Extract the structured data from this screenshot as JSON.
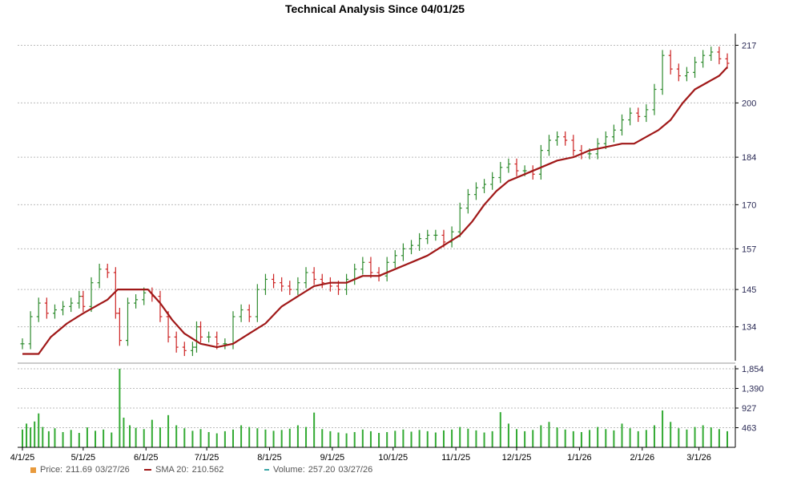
{
  "chart_data": {
    "type": "line",
    "title": "Technical Analysis Since 04/01/25",
    "price_axis": {
      "ticks": [
        134,
        145,
        157,
        170,
        184,
        200,
        217
      ],
      "range": [
        124,
        219
      ]
    },
    "volume_axis": {
      "ticks": [
        463,
        927,
        1390,
        1854
      ],
      "range": [
        0,
        1854
      ]
    },
    "x_ticks": [
      {
        "label": "4/1/25",
        "day": 0
      },
      {
        "label": "5/1/25",
        "day": 30
      },
      {
        "label": "6/1/25",
        "day": 61
      },
      {
        "label": "7/1/25",
        "day": 91
      },
      {
        "label": "8/1/25",
        "day": 122
      },
      {
        "label": "9/1/25",
        "day": 153
      },
      {
        "label": "10/1/25",
        "day": 183
      },
      {
        "label": "11/1/25",
        "day": 214
      },
      {
        "label": "12/1/25",
        "day": 244
      },
      {
        "label": "1/1/26",
        "day": 275
      },
      {
        "label": "2/1/26",
        "day": 306
      },
      {
        "label": "3/1/26",
        "day": 334
      }
    ],
    "price_series": [
      {
        "day": 0,
        "c": 129
      },
      {
        "day": 4,
        "c": 137
      },
      {
        "day": 8,
        "c": 141
      },
      {
        "day": 12,
        "c": 138
      },
      {
        "day": 16,
        "c": 139
      },
      {
        "day": 20,
        "c": 140
      },
      {
        "day": 24,
        "c": 141
      },
      {
        "day": 28,
        "c": 143
      },
      {
        "day": 30,
        "c": 140
      },
      {
        "day": 34,
        "c": 147
      },
      {
        "day": 38,
        "c": 151
      },
      {
        "day": 42,
        "c": 150
      },
      {
        "day": 46,
        "c": 138
      },
      {
        "day": 48,
        "c": 130
      },
      {
        "day": 52,
        "c": 141
      },
      {
        "day": 56,
        "c": 142
      },
      {
        "day": 60,
        "c": 144
      },
      {
        "day": 64,
        "c": 143
      },
      {
        "day": 68,
        "c": 137
      },
      {
        "day": 72,
        "c": 131
      },
      {
        "day": 76,
        "c": 128
      },
      {
        "day": 80,
        "c": 127
      },
      {
        "day": 84,
        "c": 128
      },
      {
        "day": 86,
        "c": 134
      },
      {
        "day": 88,
        "c": 131
      },
      {
        "day": 92,
        "c": 131
      },
      {
        "day": 96,
        "c": 129
      },
      {
        "day": 100,
        "c": 129
      },
      {
        "day": 104,
        "c": 137
      },
      {
        "day": 108,
        "c": 139
      },
      {
        "day": 112,
        "c": 137
      },
      {
        "day": 116,
        "c": 145
      },
      {
        "day": 120,
        "c": 148
      },
      {
        "day": 124,
        "c": 147
      },
      {
        "day": 128,
        "c": 146
      },
      {
        "day": 132,
        "c": 145
      },
      {
        "day": 136,
        "c": 147
      },
      {
        "day": 140,
        "c": 150
      },
      {
        "day": 144,
        "c": 148
      },
      {
        "day": 148,
        "c": 147
      },
      {
        "day": 152,
        "c": 146
      },
      {
        "day": 156,
        "c": 145
      },
      {
        "day": 160,
        "c": 148
      },
      {
        "day": 164,
        "c": 151
      },
      {
        "day": 168,
        "c": 153
      },
      {
        "day": 172,
        "c": 150
      },
      {
        "day": 176,
        "c": 149
      },
      {
        "day": 180,
        "c": 153
      },
      {
        "day": 184,
        "c": 155
      },
      {
        "day": 188,
        "c": 157
      },
      {
        "day": 192,
        "c": 158
      },
      {
        "day": 196,
        "c": 160
      },
      {
        "day": 200,
        "c": 161
      },
      {
        "day": 204,
        "c": 161
      },
      {
        "day": 208,
        "c": 159
      },
      {
        "day": 212,
        "c": 162
      },
      {
        "day": 216,
        "c": 169
      },
      {
        "day": 220,
        "c": 173
      },
      {
        "day": 224,
        "c": 175
      },
      {
        "day": 228,
        "c": 176
      },
      {
        "day": 232,
        "c": 178
      },
      {
        "day": 236,
        "c": 181
      },
      {
        "day": 240,
        "c": 182
      },
      {
        "day": 244,
        "c": 180
      },
      {
        "day": 248,
        "c": 180
      },
      {
        "day": 252,
        "c": 179
      },
      {
        "day": 256,
        "c": 186
      },
      {
        "day": 260,
        "c": 189
      },
      {
        "day": 264,
        "c": 190
      },
      {
        "day": 268,
        "c": 189
      },
      {
        "day": 272,
        "c": 186
      },
      {
        "day": 276,
        "c": 185
      },
      {
        "day": 280,
        "c": 185
      },
      {
        "day": 284,
        "c": 188
      },
      {
        "day": 288,
        "c": 190
      },
      {
        "day": 292,
        "c": 192
      },
      {
        "day": 296,
        "c": 195
      },
      {
        "day": 300,
        "c": 197
      },
      {
        "day": 304,
        "c": 196
      },
      {
        "day": 308,
        "c": 198
      },
      {
        "day": 312,
        "c": 204
      },
      {
        "day": 316,
        "c": 214
      },
      {
        "day": 320,
        "c": 210
      },
      {
        "day": 324,
        "c": 208
      },
      {
        "day": 328,
        "c": 209
      },
      {
        "day": 332,
        "c": 212
      },
      {
        "day": 336,
        "c": 214
      },
      {
        "day": 340,
        "c": 215
      },
      {
        "day": 344,
        "c": 213
      },
      {
        "day": 348,
        "c": 211.69
      }
    ],
    "sma20_series": [
      {
        "day": 0,
        "v": 126
      },
      {
        "day": 8,
        "v": 126
      },
      {
        "day": 14,
        "v": 131
      },
      {
        "day": 22,
        "v": 135
      },
      {
        "day": 30,
        "v": 138
      },
      {
        "day": 36,
        "v": 140
      },
      {
        "day": 42,
        "v": 142
      },
      {
        "day": 47,
        "v": 145
      },
      {
        "day": 56,
        "v": 145
      },
      {
        "day": 62,
        "v": 145
      },
      {
        "day": 68,
        "v": 141
      },
      {
        "day": 74,
        "v": 136
      },
      {
        "day": 80,
        "v": 132
      },
      {
        "day": 88,
        "v": 129
      },
      {
        "day": 96,
        "v": 128
      },
      {
        "day": 104,
        "v": 129
      },
      {
        "day": 112,
        "v": 132
      },
      {
        "day": 120,
        "v": 135
      },
      {
        "day": 128,
        "v": 140
      },
      {
        "day": 136,
        "v": 143
      },
      {
        "day": 144,
        "v": 146
      },
      {
        "day": 152,
        "v": 147
      },
      {
        "day": 160,
        "v": 147
      },
      {
        "day": 168,
        "v": 149
      },
      {
        "day": 176,
        "v": 149
      },
      {
        "day": 184,
        "v": 151
      },
      {
        "day": 192,
        "v": 153
      },
      {
        "day": 200,
        "v": 155
      },
      {
        "day": 208,
        "v": 158
      },
      {
        "day": 216,
        "v": 161
      },
      {
        "day": 222,
        "v": 165
      },
      {
        "day": 228,
        "v": 170
      },
      {
        "day": 234,
        "v": 174
      },
      {
        "day": 240,
        "v": 177
      },
      {
        "day": 248,
        "v": 179
      },
      {
        "day": 256,
        "v": 181
      },
      {
        "day": 264,
        "v": 183
      },
      {
        "day": 272,
        "v": 184
      },
      {
        "day": 280,
        "v": 186
      },
      {
        "day": 288,
        "v": 187
      },
      {
        "day": 296,
        "v": 188
      },
      {
        "day": 302,
        "v": 188
      },
      {
        "day": 308,
        "v": 190
      },
      {
        "day": 314,
        "v": 192
      },
      {
        "day": 320,
        "v": 195
      },
      {
        "day": 326,
        "v": 200
      },
      {
        "day": 332,
        "v": 204
      },
      {
        "day": 338,
        "v": 206
      },
      {
        "day": 344,
        "v": 208
      },
      {
        "day": 348,
        "v": 210.562
      }
    ],
    "volume_series": [
      {
        "day": 0,
        "v": 420
      },
      {
        "day": 2,
        "v": 560
      },
      {
        "day": 4,
        "v": 470
      },
      {
        "day": 6,
        "v": 610
      },
      {
        "day": 8,
        "v": 800
      },
      {
        "day": 10,
        "v": 480
      },
      {
        "day": 13,
        "v": 380
      },
      {
        "day": 16,
        "v": 450
      },
      {
        "day": 20,
        "v": 360
      },
      {
        "day": 24,
        "v": 410
      },
      {
        "day": 28,
        "v": 340
      },
      {
        "day": 32,
        "v": 470
      },
      {
        "day": 36,
        "v": 390
      },
      {
        "day": 40,
        "v": 420
      },
      {
        "day": 44,
        "v": 350
      },
      {
        "day": 48,
        "v": 1854
      },
      {
        "day": 50,
        "v": 700
      },
      {
        "day": 53,
        "v": 520
      },
      {
        "day": 56,
        "v": 460
      },
      {
        "day": 60,
        "v": 430
      },
      {
        "day": 64,
        "v": 650
      },
      {
        "day": 68,
        "v": 470
      },
      {
        "day": 72,
        "v": 760
      },
      {
        "day": 76,
        "v": 520
      },
      {
        "day": 80,
        "v": 450
      },
      {
        "day": 84,
        "v": 390
      },
      {
        "day": 88,
        "v": 430
      },
      {
        "day": 92,
        "v": 360
      },
      {
        "day": 96,
        "v": 330
      },
      {
        "day": 100,
        "v": 380
      },
      {
        "day": 104,
        "v": 420
      },
      {
        "day": 108,
        "v": 520
      },
      {
        "day": 112,
        "v": 480
      },
      {
        "day": 116,
        "v": 450
      },
      {
        "day": 120,
        "v": 420
      },
      {
        "day": 124,
        "v": 390
      },
      {
        "day": 128,
        "v": 410
      },
      {
        "day": 132,
        "v": 440
      },
      {
        "day": 136,
        "v": 520
      },
      {
        "day": 140,
        "v": 480
      },
      {
        "day": 144,
        "v": 820
      },
      {
        "day": 148,
        "v": 430
      },
      {
        "day": 152,
        "v": 380
      },
      {
        "day": 156,
        "v": 350
      },
      {
        "day": 160,
        "v": 330
      },
      {
        "day": 164,
        "v": 360
      },
      {
        "day": 168,
        "v": 420
      },
      {
        "day": 172,
        "v": 380
      },
      {
        "day": 176,
        "v": 340
      },
      {
        "day": 180,
        "v": 360
      },
      {
        "day": 184,
        "v": 390
      },
      {
        "day": 188,
        "v": 420
      },
      {
        "day": 192,
        "v": 370
      },
      {
        "day": 196,
        "v": 410
      },
      {
        "day": 200,
        "v": 380
      },
      {
        "day": 204,
        "v": 350
      },
      {
        "day": 208,
        "v": 400
      },
      {
        "day": 212,
        "v": 420
      },
      {
        "day": 216,
        "v": 480
      },
      {
        "day": 220,
        "v": 440
      },
      {
        "day": 224,
        "v": 400
      },
      {
        "day": 228,
        "v": 350
      },
      {
        "day": 232,
        "v": 380
      },
      {
        "day": 236,
        "v": 830
      },
      {
        "day": 240,
        "v": 560
      },
      {
        "day": 244,
        "v": 430
      },
      {
        "day": 248,
        "v": 380
      },
      {
        "day": 252,
        "v": 410
      },
      {
        "day": 256,
        "v": 520
      },
      {
        "day": 260,
        "v": 600
      },
      {
        "day": 264,
        "v": 470
      },
      {
        "day": 268,
        "v": 420
      },
      {
        "day": 272,
        "v": 380
      },
      {
        "day": 276,
        "v": 360
      },
      {
        "day": 280,
        "v": 410
      },
      {
        "day": 284,
        "v": 480
      },
      {
        "day": 288,
        "v": 430
      },
      {
        "day": 292,
        "v": 400
      },
      {
        "day": 296,
        "v": 560
      },
      {
        "day": 300,
        "v": 450
      },
      {
        "day": 304,
        "v": 380
      },
      {
        "day": 308,
        "v": 410
      },
      {
        "day": 312,
        "v": 520
      },
      {
        "day": 316,
        "v": 870
      },
      {
        "day": 320,
        "v": 600
      },
      {
        "day": 324,
        "v": 450
      },
      {
        "day": 328,
        "v": 420
      },
      {
        "day": 332,
        "v": 480
      },
      {
        "day": 336,
        "v": 520
      },
      {
        "day": 340,
        "v": 470
      },
      {
        "day": 344,
        "v": 430
      },
      {
        "day": 348,
        "v": 380
      }
    ],
    "colors": {
      "up": "#2e8b2e",
      "down": "#cc2222",
      "sma": "#a01818",
      "volume": "#33aa33",
      "grid": "#bbbbbb",
      "price_legend": "#e89a3c",
      "volume_legend": "#3aa6a6"
    },
    "grid": true,
    "legend": {
      "placement": "bottom-left",
      "price": {
        "label": "Price:",
        "value": "211.69",
        "date": "03/27/26"
      },
      "sma": {
        "label": "SMA 20:",
        "value": "210.562"
      },
      "volume": {
        "label": "Volume:",
        "value": "257.20",
        "date": "03/27/26"
      }
    }
  }
}
